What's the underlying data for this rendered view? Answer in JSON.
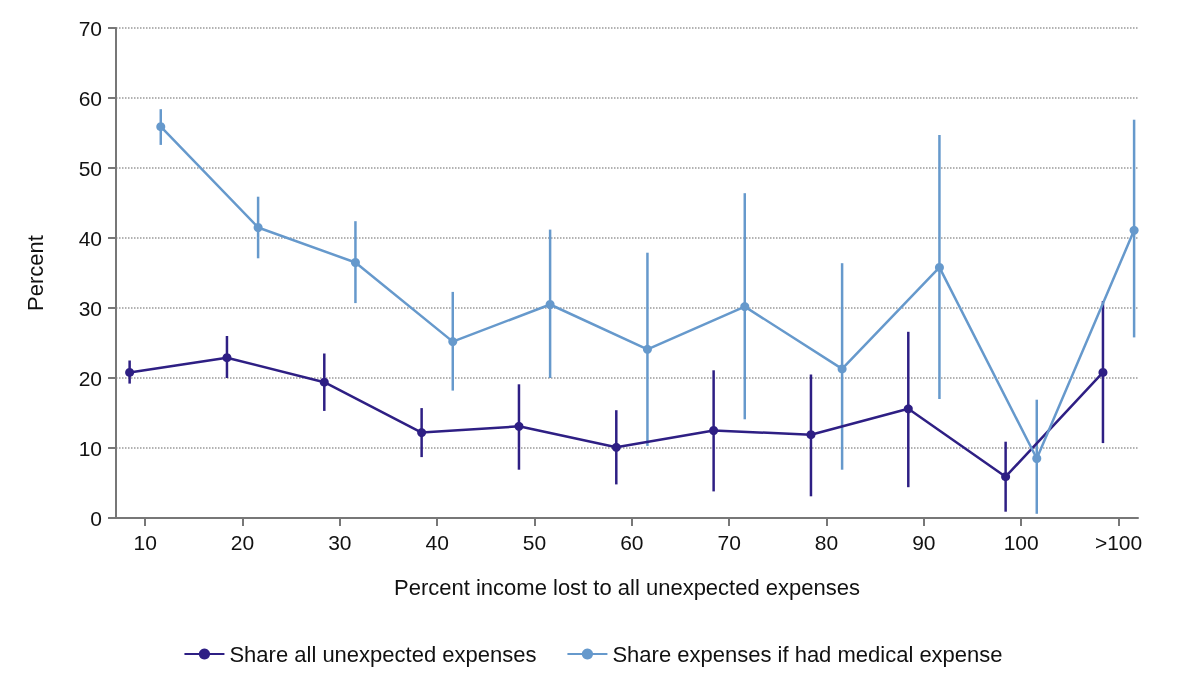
{
  "chart_data": {
    "type": "line",
    "xlabel": "Percent income lost to all unexpected expenses",
    "ylabel": "Percent",
    "xlim": [
      7,
      112
    ],
    "xticks": [
      10,
      20,
      30,
      40,
      50,
      60,
      70,
      80,
      90,
      100,
      {
        "value": 110,
        "label": ">100"
      }
    ],
    "ylim": [
      0,
      70
    ],
    "yticks": [
      0,
      10,
      20,
      30,
      40,
      50,
      60,
      70
    ],
    "grid": "y",
    "legend": "bottom",
    "marker": "circle",
    "line_style": "solid",
    "series": [
      {
        "name": "Share all unexpected expenses",
        "color": "#2e1f84",
        "x": [
          8.4,
          18.4,
          28.4,
          38.4,
          48.4,
          58.4,
          68.4,
          78.4,
          88.4,
          98.4,
          108.4
        ],
        "values": [
          20.8,
          22.9,
          19.4,
          12.2,
          13.1,
          10.1,
          12.5,
          11.9,
          15.6,
          5.9,
          20.8
        ],
        "errors": [
          [
            19.2,
            22.5
          ],
          [
            20.0,
            26.0
          ],
          [
            15.3,
            23.5
          ],
          [
            8.7,
            15.7
          ],
          [
            6.9,
            19.1
          ],
          [
            4.8,
            15.4
          ],
          [
            3.8,
            21.1
          ],
          [
            3.1,
            20.5
          ],
          [
            4.4,
            26.6
          ],
          [
            0.9,
            10.9
          ],
          [
            10.7,
            31.0
          ]
        ]
      },
      {
        "name": "Share expenses if had medical expense",
        "color": "#6699cc",
        "x": [
          11.6,
          21.6,
          31.6,
          41.6,
          51.6,
          61.6,
          71.6,
          81.6,
          91.6,
          101.6,
          111.6
        ],
        "values": [
          55.9,
          41.5,
          36.5,
          25.2,
          30.5,
          24.1,
          30.2,
          21.3,
          35.8,
          8.5,
          41.1
        ],
        "errors": [
          [
            53.3,
            58.4
          ],
          [
            37.1,
            45.9
          ],
          [
            30.7,
            42.4
          ],
          [
            18.2,
            32.3
          ],
          [
            20.0,
            41.2
          ],
          [
            10.3,
            37.9
          ],
          [
            14.1,
            46.4
          ],
          [
            6.9,
            36.4
          ],
          [
            17.0,
            54.7
          ],
          [
            0.6,
            16.9
          ],
          [
            25.8,
            56.9
          ]
        ]
      }
    ]
  }
}
